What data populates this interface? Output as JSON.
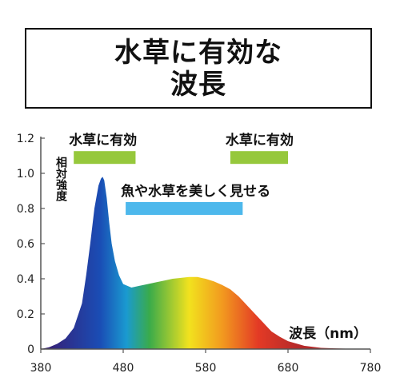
{
  "title_lines": [
    "水草に有効な",
    "波長"
  ],
  "chart_data": {
    "type": "area",
    "ylabel": "相対強度",
    "xlabel": "波長（nm）",
    "xlim": [
      380,
      780
    ],
    "ylim": [
      0,
      1.2
    ],
    "xticks": [
      380,
      480,
      580,
      680,
      780
    ],
    "yticks": [
      0,
      0.2,
      0.4,
      0.6,
      0.8,
      1.0,
      1.2
    ],
    "ytick_labels": [
      "0",
      "0.2",
      "0.4",
      "0.6",
      "0.8",
      "1.0",
      "1.2"
    ],
    "series": [
      {
        "x": [
          380,
          390,
          400,
          410,
          420,
          430,
          435,
          440,
          445,
          450,
          453,
          455,
          457,
          460,
          463,
          466,
          470,
          475,
          480,
          490,
          500,
          510,
          520,
          530,
          540,
          550,
          560,
          570,
          580,
          590,
          600,
          610,
          620,
          625,
          630,
          640,
          650,
          660,
          670,
          680,
          700,
          720,
          740,
          760,
          780
        ],
        "y": [
          0,
          0.01,
          0.03,
          0.06,
          0.12,
          0.26,
          0.42,
          0.6,
          0.8,
          0.93,
          0.97,
          0.98,
          0.96,
          0.86,
          0.72,
          0.6,
          0.5,
          0.42,
          0.37,
          0.35,
          0.36,
          0.37,
          0.38,
          0.39,
          0.4,
          0.405,
          0.41,
          0.41,
          0.4,
          0.385,
          0.365,
          0.34,
          0.3,
          0.275,
          0.25,
          0.2,
          0.15,
          0.1,
          0.07,
          0.045,
          0.018,
          0.007,
          0.003,
          0.001,
          0
        ]
      }
    ],
    "annotations": [
      {
        "label": "水草に有効",
        "x_range": [
          420,
          495
        ],
        "y": 1.09,
        "color": "#96c83c"
      },
      {
        "label": "水草に有効",
        "x_range": [
          610,
          680
        ],
        "y": 1.09,
        "color": "#96c83c"
      },
      {
        "label": "魚や水草を美しく見せる",
        "x_range": [
          483,
          625
        ],
        "y": 0.8,
        "color": "#4db8ec"
      }
    ],
    "colors": {
      "violet": "#3a1a6e",
      "blue": "#1a4db5",
      "cyan": "#1a9ad0",
      "green": "#3aab4a",
      "yellow": "#f2e21e",
      "orange": "#f29a1f",
      "red": "#e33a25",
      "dark_red": "#b52a2a"
    }
  }
}
